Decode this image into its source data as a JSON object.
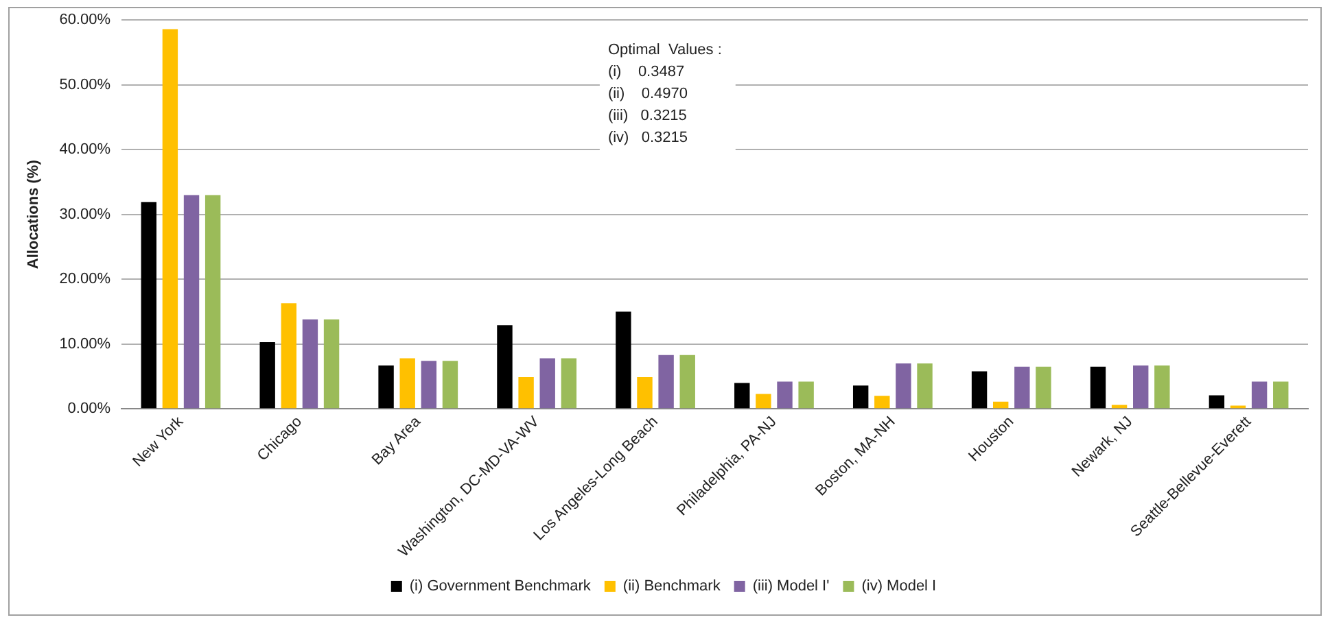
{
  "chart_data": {
    "type": "bar",
    "ylabel": "Allocations (%)",
    "categories": [
      "New York",
      "Chicago",
      "Bay Area",
      "Washington, DC-MD-VA-WV",
      "Los Angeles-Long Beach",
      "Philadelphia, PA-NJ",
      "Boston, MA-NH",
      "Houston",
      "Newark, NJ",
      "Seattle-Bellevue-Everett"
    ],
    "series": [
      {
        "name": "(i) Government Benchmark",
        "color": "#000000",
        "values": [
          31.9,
          10.3,
          6.7,
          12.9,
          15.0,
          4.0,
          3.6,
          5.8,
          6.5,
          2.1
        ]
      },
      {
        "name": "(ii) Benchmark",
        "color": "#ffc000",
        "values": [
          58.6,
          16.3,
          7.8,
          4.9,
          4.9,
          2.3,
          2.0,
          1.1,
          0.6,
          0.5
        ]
      },
      {
        "name": "(iii) Model I'",
        "color": "#8064a2",
        "values": [
          33.0,
          13.8,
          7.4,
          7.8,
          8.3,
          4.2,
          7.0,
          6.5,
          6.7,
          4.2
        ]
      },
      {
        "name": "(iv) Model I",
        "color": "#9bbb59",
        "values": [
          33.0,
          13.8,
          7.4,
          7.8,
          8.3,
          4.2,
          7.0,
          6.5,
          6.7,
          4.2
        ]
      }
    ],
    "ylim": [
      0,
      60
    ],
    "yticks": [
      {
        "value": 0,
        "label": "0.00%"
      },
      {
        "value": 10,
        "label": "10.00%"
      },
      {
        "value": 20,
        "label": "20.00%"
      },
      {
        "value": 30,
        "label": "30.00%"
      },
      {
        "value": 40,
        "label": "40.00%"
      },
      {
        "value": 50,
        "label": "50.00%"
      },
      {
        "value": 60,
        "label": "60.00%"
      }
    ],
    "grid": "y",
    "legend": "bottom",
    "annotations": [
      "Optimal  Values :",
      "(i)    0.3487",
      "(ii)    0.4970",
      "(iii)   0.3215",
      "(iv)   0.3215"
    ]
  }
}
